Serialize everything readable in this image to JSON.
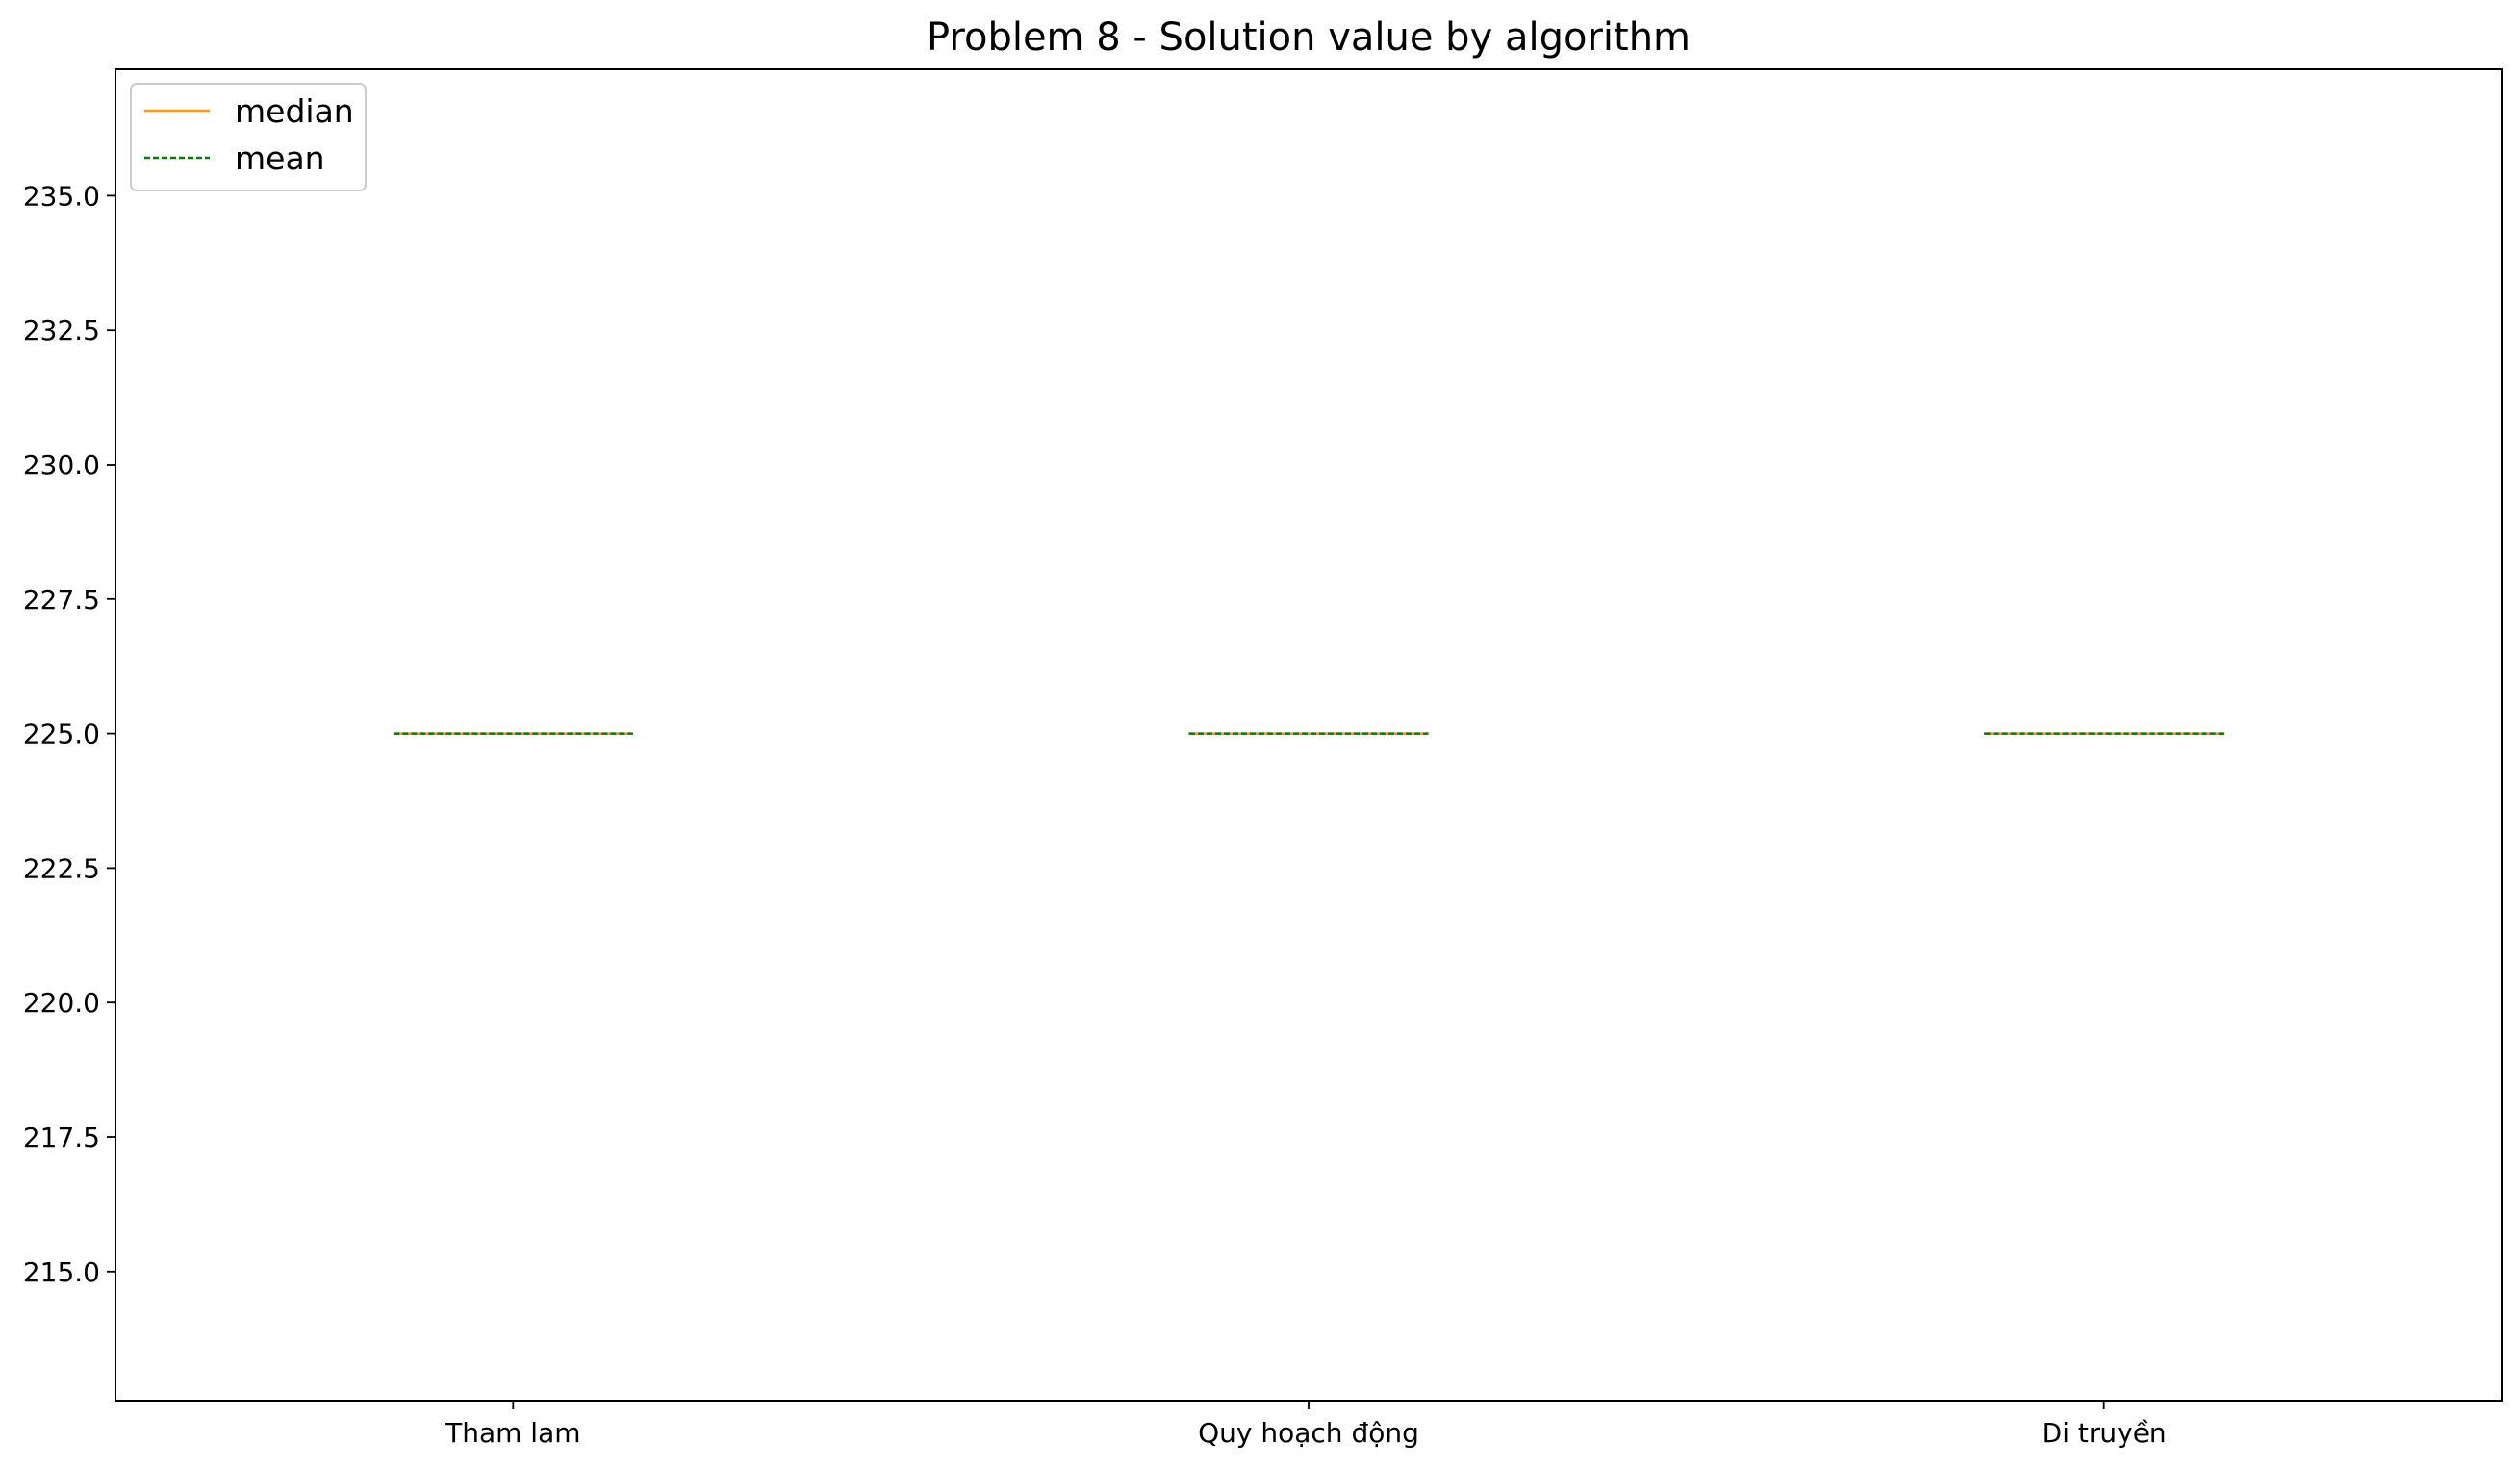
{
  "chart_data": {
    "type": "box",
    "title": "Problem 8 - Solution value by algorithm",
    "xlabel": "",
    "ylabel": "",
    "categories": [
      "Tham lam",
      "Quy hoạch động",
      "Di truyền"
    ],
    "ylim": [
      212.6,
      237.35
    ],
    "yticks": [
      215.0,
      217.5,
      220.0,
      222.5,
      225.0,
      227.5,
      230.0,
      232.5,
      235.0
    ],
    "ytick_labels": [
      "215.0",
      "217.5",
      "220.0",
      "222.5",
      "225.0",
      "227.5",
      "230.0",
      "232.5",
      "235.0"
    ],
    "series": [
      {
        "name": "median",
        "values": [
          225.0,
          225.0,
          225.0
        ]
      },
      {
        "name": "mean",
        "values": [
          225.0,
          225.0,
          225.0
        ]
      }
    ],
    "grid": false,
    "legend": {
      "position": "top-left",
      "entries": [
        {
          "label": "median",
          "color": "#ff9900",
          "style": "solid"
        },
        {
          "label": "mean",
          "color": "#008000",
          "style": "dashed"
        }
      ]
    }
  },
  "colors": {
    "median": "#ff9900",
    "mean": "#008000",
    "box": "#000000",
    "axes": "#000000"
  }
}
